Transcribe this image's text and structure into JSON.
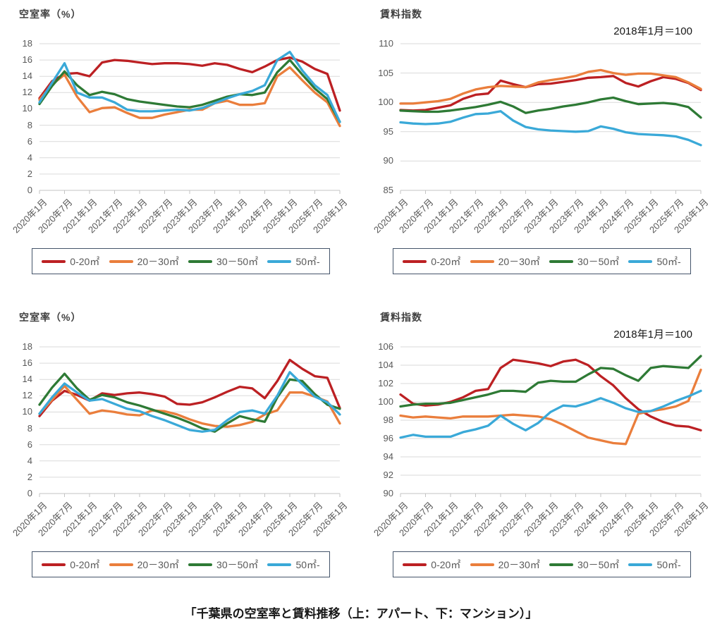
{
  "page": {
    "caption": "「千葉県の空室率と賃料推移（上：アパート、下：マンション）」"
  },
  "x_axis_labels": [
    "2020年1月",
    "2020年7月",
    "2021年1月",
    "2021年7月",
    "2022年1月",
    "2022年7月",
    "2023年1月",
    "2023年7月",
    "2024年1月",
    "2024年7月",
    "2025年1月",
    "2025年7月",
    "2026年1月"
  ],
  "legend": {
    "items": [
      {
        "label": "0-20㎡",
        "color": "#bc2023"
      },
      {
        "label": "20－30㎡",
        "color": "#ea7e3c"
      },
      {
        "label": "30－50㎡",
        "color": "#2e7a35"
      },
      {
        "label": "50㎡-",
        "color": "#3aa9d8"
      }
    ]
  },
  "chart_data": [
    {
      "id": "apartment-vacancy",
      "type": "line",
      "title": "空室率（%）",
      "annotation": "",
      "ylim": [
        0,
        18
      ],
      "ytick_step": 2,
      "grid": true,
      "x": [
        "2020-01",
        "2020-04",
        "2020-07",
        "2020-10",
        "2021-01",
        "2021-04",
        "2021-07",
        "2021-10",
        "2022-01",
        "2022-04",
        "2022-07",
        "2022-10",
        "2023-01",
        "2023-04",
        "2023-07",
        "2023-10",
        "2024-01",
        "2024-04",
        "2024-07",
        "2024-10",
        "2025-01",
        "2025-04",
        "2025-07",
        "2025-10",
        "2026-01"
      ],
      "series": [
        {
          "name": "0-20㎡",
          "color": "#bc2023",
          "values": [
            11.3,
            13.4,
            14.3,
            14.4,
            14.0,
            15.7,
            16.0,
            15.9,
            15.7,
            15.5,
            15.6,
            15.6,
            15.5,
            15.3,
            15.6,
            15.4,
            14.9,
            14.5,
            15.2,
            16.0,
            16.3,
            15.8,
            14.9,
            14.3,
            9.8
          ]
        },
        {
          "name": "20－30㎡",
          "color": "#ea7e3c",
          "values": [
            11.1,
            13.0,
            14.2,
            11.5,
            9.6,
            10.1,
            10.2,
            9.5,
            8.9,
            8.9,
            9.3,
            9.6,
            9.9,
            9.9,
            10.7,
            11.0,
            10.5,
            10.5,
            10.7,
            14.0,
            15.1,
            13.5,
            12.0,
            10.8,
            7.9
          ]
        },
        {
          "name": "30－50㎡",
          "color": "#2e7a35",
          "values": [
            10.6,
            12.8,
            14.6,
            12.9,
            11.7,
            12.1,
            11.8,
            11.2,
            10.9,
            10.7,
            10.5,
            10.3,
            10.2,
            10.5,
            11.0,
            11.5,
            11.8,
            11.7,
            12.0,
            14.5,
            16.0,
            14.2,
            12.5,
            11.2,
            8.4
          ]
        },
        {
          "name": "50㎡-",
          "color": "#3aa9d8",
          "values": [
            10.8,
            13.2,
            15.6,
            12.0,
            11.4,
            11.4,
            10.8,
            9.9,
            9.7,
            9.7,
            9.8,
            9.9,
            9.8,
            10.1,
            10.7,
            11.3,
            11.8,
            12.2,
            12.9,
            16.0,
            17.0,
            14.7,
            12.9,
            11.7,
            8.4
          ]
        }
      ]
    },
    {
      "id": "apartment-rent-index",
      "type": "line",
      "title": "賃料指数",
      "annotation": "2018年1月＝100",
      "ylim": [
        85,
        110
      ],
      "ytick_step": 5,
      "grid": true,
      "x": [
        "2020-01",
        "2020-04",
        "2020-07",
        "2020-10",
        "2021-01",
        "2021-04",
        "2021-07",
        "2021-10",
        "2022-01",
        "2022-04",
        "2022-07",
        "2022-10",
        "2023-01",
        "2023-04",
        "2023-07",
        "2023-10",
        "2024-01",
        "2024-04",
        "2024-07",
        "2024-10",
        "2025-01",
        "2025-04",
        "2025-07",
        "2025-10",
        "2026-01"
      ],
      "series": [
        {
          "name": "0-20㎡",
          "color": "#bc2023",
          "values": [
            98.7,
            98.6,
            98.7,
            99.1,
            99.5,
            100.6,
            101.3,
            101.5,
            103.7,
            103.1,
            102.6,
            103.1,
            103.2,
            103.5,
            103.8,
            104.2,
            104.3,
            104.5,
            103.3,
            102.7,
            103.6,
            104.3,
            104.0,
            103.3,
            102.1
          ]
        },
        {
          "name": "20－30㎡",
          "color": "#ea7e3c",
          "values": [
            99.8,
            99.8,
            100.0,
            100.2,
            100.6,
            101.5,
            102.2,
            102.6,
            102.8,
            102.7,
            102.6,
            103.4,
            103.8,
            104.1,
            104.5,
            105.2,
            105.5,
            105.0,
            104.7,
            104.9,
            104.9,
            104.6,
            104.3,
            103.4,
            102.3
          ]
        },
        {
          "name": "30－50㎡",
          "color": "#2e7a35",
          "values": [
            98.6,
            98.5,
            98.4,
            98.4,
            98.6,
            98.9,
            99.2,
            99.6,
            100.1,
            99.3,
            98.2,
            98.6,
            98.9,
            99.3,
            99.6,
            100.0,
            100.5,
            100.8,
            100.2,
            99.7,
            99.8,
            99.9,
            99.7,
            99.2,
            97.4
          ]
        },
        {
          "name": "50㎡-",
          "color": "#3aa9d8",
          "values": [
            96.6,
            96.4,
            96.3,
            96.4,
            96.7,
            97.4,
            98.0,
            98.1,
            98.5,
            96.9,
            95.8,
            95.4,
            95.2,
            95.1,
            95.0,
            95.1,
            95.9,
            95.5,
            94.9,
            94.6,
            94.5,
            94.4,
            94.2,
            93.6,
            92.7
          ]
        }
      ]
    },
    {
      "id": "mansion-vacancy",
      "type": "line",
      "title": "空室率（%）",
      "annotation": "",
      "ylim": [
        0,
        18
      ],
      "ytick_step": 2,
      "grid": true,
      "x": [
        "2020-01",
        "2020-04",
        "2020-07",
        "2020-10",
        "2021-01",
        "2021-04",
        "2021-07",
        "2021-10",
        "2022-01",
        "2022-04",
        "2022-07",
        "2022-10",
        "2023-01",
        "2023-04",
        "2023-07",
        "2023-10",
        "2024-01",
        "2024-04",
        "2024-07",
        "2024-10",
        "2025-01",
        "2025-04",
        "2025-07",
        "2025-10",
        "2026-01"
      ],
      "series": [
        {
          "name": "0-20㎡",
          "color": "#bc2023",
          "values": [
            9.5,
            11.4,
            12.6,
            12.1,
            11.4,
            12.3,
            12.1,
            12.3,
            12.4,
            12.2,
            11.9,
            11.0,
            10.9,
            11.2,
            11.8,
            12.5,
            13.1,
            12.9,
            11.7,
            13.8,
            16.4,
            15.3,
            14.4,
            14.2,
            10.5
          ]
        },
        {
          "name": "20－30㎡",
          "color": "#ea7e3c",
          "values": [
            9.8,
            11.5,
            13.2,
            11.5,
            9.8,
            10.2,
            10.0,
            9.7,
            9.6,
            10.2,
            10.1,
            9.7,
            9.1,
            8.6,
            8.3,
            8.2,
            8.4,
            8.8,
            9.7,
            10.2,
            12.4,
            12.4,
            11.9,
            11.3,
            8.6
          ]
        },
        {
          "name": "30－50㎡",
          "color": "#2e7a35",
          "values": [
            10.9,
            13.0,
            14.7,
            12.9,
            11.5,
            12.1,
            11.8,
            11.2,
            10.8,
            10.3,
            9.8,
            9.3,
            8.7,
            8.0,
            7.6,
            8.6,
            9.5,
            9.1,
            8.8,
            11.8,
            14.0,
            13.8,
            12.2,
            10.9,
            10.4
          ]
        },
        {
          "name": "50㎡-",
          "color": "#3aa9d8",
          "values": [
            9.8,
            11.8,
            13.5,
            12.4,
            11.4,
            11.6,
            11.0,
            10.4,
            10.1,
            9.5,
            9.0,
            8.4,
            7.8,
            7.6,
            7.8,
            9.0,
            10.0,
            10.2,
            9.8,
            12.0,
            14.9,
            13.4,
            11.9,
            11.2,
            9.7
          ]
        }
      ]
    },
    {
      "id": "mansion-rent-index",
      "type": "line",
      "title": "賃料指数",
      "annotation": "2018年1月＝100",
      "ylim": [
        90,
        106
      ],
      "ytick_step": 2,
      "grid": true,
      "x": [
        "2020-01",
        "2020-04",
        "2020-07",
        "2020-10",
        "2021-01",
        "2021-04",
        "2021-07",
        "2021-10",
        "2022-01",
        "2022-04",
        "2022-07",
        "2022-10",
        "2023-01",
        "2023-04",
        "2023-07",
        "2023-10",
        "2024-01",
        "2024-04",
        "2024-07",
        "2024-10",
        "2025-01",
        "2025-04",
        "2025-07",
        "2025-10",
        "2026-01"
      ],
      "series": [
        {
          "name": "0-20㎡",
          "color": "#bc2023",
          "values": [
            100.8,
            99.8,
            99.6,
            99.7,
            100.0,
            100.5,
            101.2,
            101.4,
            103.7,
            104.6,
            104.4,
            104.2,
            103.9,
            104.4,
            104.6,
            104.0,
            102.8,
            101.8,
            100.4,
            99.2,
            98.4,
            97.8,
            97.4,
            97.3,
            96.9
          ]
        },
        {
          "name": "20－30㎡",
          "color": "#ea7e3c",
          "values": [
            98.5,
            98.3,
            98.4,
            98.3,
            98.2,
            98.4,
            98.4,
            98.4,
            98.5,
            98.6,
            98.5,
            98.4,
            98.1,
            97.5,
            96.8,
            96.1,
            95.8,
            95.5,
            95.4,
            98.7,
            99.0,
            99.2,
            99.5,
            100.1,
            103.5
          ]
        },
        {
          "name": "30－50㎡",
          "color": "#2e7a35",
          "values": [
            99.5,
            99.7,
            99.8,
            99.8,
            99.9,
            100.2,
            100.5,
            100.8,
            101.2,
            101.2,
            101.1,
            102.1,
            102.3,
            102.2,
            102.2,
            103.0,
            103.7,
            103.6,
            102.9,
            102.3,
            103.7,
            103.9,
            103.8,
            103.7,
            105.0
          ]
        },
        {
          "name": "50㎡-",
          "color": "#3aa9d8",
          "values": [
            96.1,
            96.4,
            96.2,
            96.2,
            96.2,
            96.7,
            97.0,
            97.4,
            98.5,
            97.6,
            96.9,
            97.7,
            98.9,
            99.6,
            99.5,
            99.9,
            100.4,
            99.9,
            99.3,
            98.9,
            99.0,
            99.5,
            100.1,
            100.6,
            101.2
          ]
        }
      ]
    }
  ]
}
